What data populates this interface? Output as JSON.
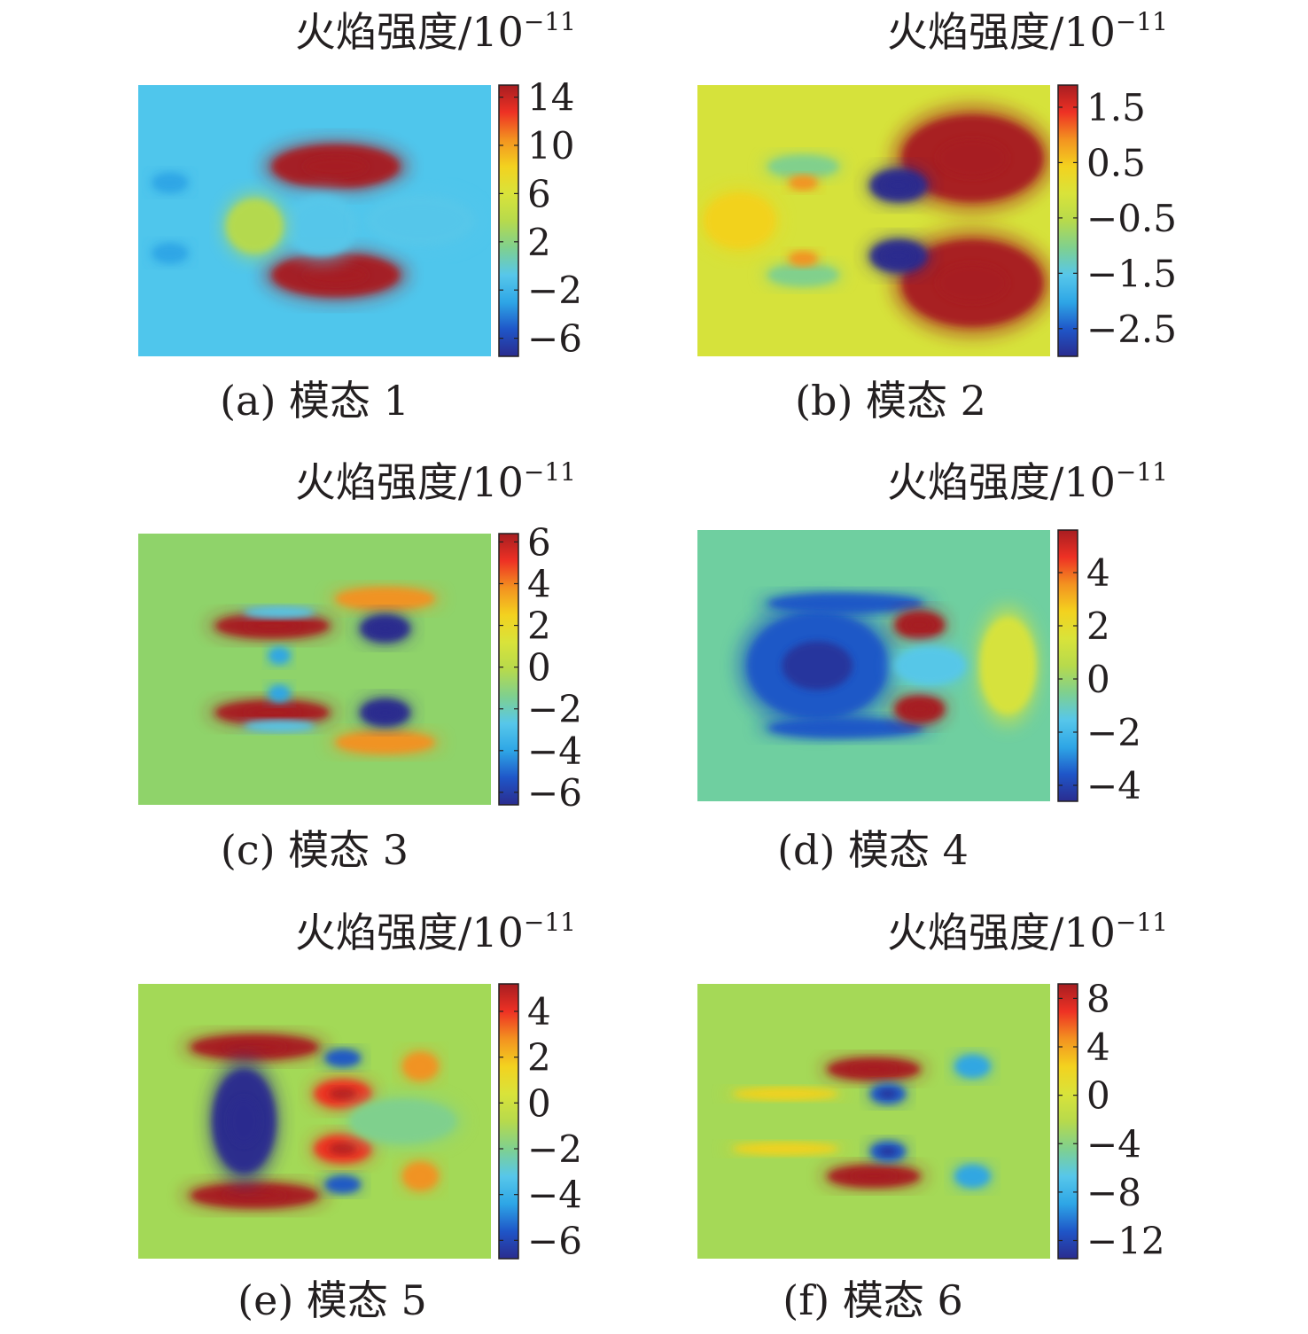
{
  "colors": {
    "jet": [
      "#2a2c8f",
      "#1f56c8",
      "#2ea6e6",
      "#57c7ea",
      "#7fd08f",
      "#b7da4c",
      "#d9e33a",
      "#f3d21f",
      "#f39220",
      "#ee3124",
      "#a71d21"
    ],
    "background_mode1": "#4fc6ec",
    "background_mode2": "#d6e23b",
    "background_mode3": "#8fd36a",
    "background_mode4": "#6fcfa0",
    "background_mode5": "#a3d957",
    "background_mode6": "#a5d957",
    "text": "#231f20"
  },
  "chart_data": [
    {
      "type": "heatmap",
      "caption": "(a) 模态 1",
      "colorbar": {
        "title_base": "火焰强度/10",
        "title_exp": "−11",
        "ticks": [
          "14",
          "10",
          "6",
          "2",
          "−2",
          "−6"
        ],
        "tick_values": [
          14,
          10,
          6,
          2,
          -2,
          -6
        ],
        "range": [
          -7.5,
          15
        ]
      },
      "blobs": [
        {
          "cx": 0.56,
          "cy": 0.3,
          "rx": 0.18,
          "ry": 0.08,
          "value": 14
        },
        {
          "cx": 0.56,
          "cy": 0.7,
          "rx": 0.18,
          "ry": 0.08,
          "value": 14
        },
        {
          "cx": 0.09,
          "cy": 0.36,
          "rx": 0.05,
          "ry": 0.035,
          "value": -4
        },
        {
          "cx": 0.09,
          "cy": 0.62,
          "rx": 0.05,
          "ry": 0.035,
          "value": -4
        },
        {
          "cx": 0.52,
          "cy": 0.52,
          "rx": 0.1,
          "ry": 0.11,
          "value": -1
        },
        {
          "cx": 0.8,
          "cy": 0.5,
          "rx": 0.15,
          "ry": 0.09,
          "value": -0.5
        },
        {
          "cx": 0.33,
          "cy": 0.52,
          "rx": 0.08,
          "ry": 0.1,
          "value": 4
        }
      ],
      "background_value": 1.5
    },
    {
      "type": "heatmap",
      "caption": "(b) 模态 2",
      "colorbar": {
        "title_base": "火焰强度/10",
        "title_exp": "−11",
        "ticks": [
          "1.5",
          "0.5",
          "−0.5",
          "−1.5",
          "−2.5"
        ],
        "tick_values": [
          1.5,
          0.5,
          -0.5,
          -1.5,
          -2.5
        ],
        "range": [
          -3.0,
          1.9
        ]
      },
      "blobs": [
        {
          "cx": 0.78,
          "cy": 0.27,
          "rx": 0.2,
          "ry": 0.16,
          "value": 1.8
        },
        {
          "cx": 0.78,
          "cy": 0.73,
          "rx": 0.2,
          "ry": 0.16,
          "value": 1.8
        },
        {
          "cx": 0.57,
          "cy": 0.37,
          "rx": 0.08,
          "ry": 0.06,
          "value": -2.8
        },
        {
          "cx": 0.57,
          "cy": 0.63,
          "rx": 0.08,
          "ry": 0.06,
          "value": -2.8
        },
        {
          "cx": 0.3,
          "cy": 0.3,
          "rx": 0.1,
          "ry": 0.04,
          "value": -1.2
        },
        {
          "cx": 0.3,
          "cy": 0.7,
          "rx": 0.1,
          "ry": 0.04,
          "value": -1.2
        },
        {
          "cx": 0.3,
          "cy": 0.36,
          "rx": 0.04,
          "ry": 0.025,
          "value": 1.0
        },
        {
          "cx": 0.3,
          "cy": 0.64,
          "rx": 0.04,
          "ry": 0.025,
          "value": 1.0
        },
        {
          "cx": 0.12,
          "cy": 0.5,
          "rx": 0.1,
          "ry": 0.1,
          "value": 0.6
        }
      ],
      "background_value": -0.2
    },
    {
      "type": "heatmap",
      "caption": "(c) 模态 3",
      "colorbar": {
        "title_base": "火焰强度/10",
        "title_exp": "−11",
        "ticks": [
          "6",
          "4",
          "2",
          "0",
          "−2",
          "−4",
          "−6"
        ],
        "tick_values": [
          6,
          4,
          2,
          0,
          -2,
          -4,
          -6
        ],
        "range": [
          -6.6,
          6.4
        ]
      },
      "blobs": [
        {
          "cx": 0.38,
          "cy": 0.34,
          "rx": 0.16,
          "ry": 0.045,
          "value": 6
        },
        {
          "cx": 0.38,
          "cy": 0.66,
          "rx": 0.16,
          "ry": 0.045,
          "value": 6
        },
        {
          "cx": 0.7,
          "cy": 0.24,
          "rx": 0.14,
          "ry": 0.04,
          "value": 3.5
        },
        {
          "cx": 0.7,
          "cy": 0.77,
          "rx": 0.14,
          "ry": 0.04,
          "value": 3.5
        },
        {
          "cx": 0.7,
          "cy": 0.35,
          "rx": 0.07,
          "ry": 0.05,
          "value": -6
        },
        {
          "cx": 0.7,
          "cy": 0.66,
          "rx": 0.07,
          "ry": 0.05,
          "value": -6
        },
        {
          "cx": 0.4,
          "cy": 0.29,
          "rx": 0.1,
          "ry": 0.02,
          "value": -3
        },
        {
          "cx": 0.4,
          "cy": 0.71,
          "rx": 0.1,
          "ry": 0.02,
          "value": -3
        },
        {
          "cx": 0.4,
          "cy": 0.45,
          "rx": 0.03,
          "ry": 0.03,
          "value": -3.5
        },
        {
          "cx": 0.4,
          "cy": 0.59,
          "rx": 0.03,
          "ry": 0.03,
          "value": -3.5
        }
      ],
      "background_value": 0.3
    },
    {
      "type": "heatmap",
      "caption": "(d) 模态 4",
      "colorbar": {
        "title_base": "火焰强度/10",
        "title_exp": "−11",
        "ticks": [
          "4",
          "2",
          "0",
          "−2",
          "−4"
        ],
        "tick_values": [
          4,
          2,
          0,
          -2,
          -4
        ],
        "range": [
          -4.6,
          5.6
        ]
      },
      "blobs": [
        {
          "cx": 0.34,
          "cy": 0.5,
          "rx": 0.2,
          "ry": 0.2,
          "value": -4
        },
        {
          "cx": 0.42,
          "cy": 0.27,
          "rx": 0.22,
          "ry": 0.035,
          "value": -3.5
        },
        {
          "cx": 0.42,
          "cy": 0.73,
          "rx": 0.22,
          "ry": 0.035,
          "value": -3.5
        },
        {
          "cx": 0.63,
          "cy": 0.35,
          "rx": 0.07,
          "ry": 0.05,
          "value": 5.5
        },
        {
          "cx": 0.63,
          "cy": 0.66,
          "rx": 0.07,
          "ry": 0.05,
          "value": 5.5
        },
        {
          "cx": 0.88,
          "cy": 0.5,
          "rx": 0.08,
          "ry": 0.18,
          "value": 1.5
        },
        {
          "cx": 0.66,
          "cy": 0.5,
          "rx": 0.1,
          "ry": 0.07,
          "value": -1.2
        }
      ],
      "background_value": -0.3
    },
    {
      "type": "heatmap",
      "caption": "(e) 模态 5",
      "colorbar": {
        "title_base": "火焰强度/10",
        "title_exp": "−11",
        "ticks": [
          "4",
          "2",
          "0",
          "−2",
          "−4",
          "−6"
        ],
        "tick_values": [
          4,
          2,
          0,
          -2,
          -4,
          -6
        ],
        "range": [
          -6.8,
          5.2
        ]
      },
      "blobs": [
        {
          "cx": 0.33,
          "cy": 0.23,
          "rx": 0.18,
          "ry": 0.045,
          "value": 5
        },
        {
          "cx": 0.33,
          "cy": 0.77,
          "rx": 0.18,
          "ry": 0.045,
          "value": 5
        },
        {
          "cx": 0.3,
          "cy": 0.5,
          "rx": 0.09,
          "ry": 0.19,
          "value": -6.5
        },
        {
          "cx": 0.58,
          "cy": 0.4,
          "rx": 0.08,
          "ry": 0.05,
          "value": 4.5
        },
        {
          "cx": 0.58,
          "cy": 0.6,
          "rx": 0.08,
          "ry": 0.05,
          "value": 4.5
        },
        {
          "cx": 0.58,
          "cy": 0.27,
          "rx": 0.05,
          "ry": 0.03,
          "value": -5.5
        },
        {
          "cx": 0.58,
          "cy": 0.73,
          "rx": 0.05,
          "ry": 0.03,
          "value": -5.5
        },
        {
          "cx": 0.8,
          "cy": 0.3,
          "rx": 0.05,
          "ry": 0.05,
          "value": 3
        },
        {
          "cx": 0.8,
          "cy": 0.7,
          "rx": 0.05,
          "ry": 0.05,
          "value": 3
        },
        {
          "cx": 0.75,
          "cy": 0.5,
          "rx": 0.15,
          "ry": 0.08,
          "value": -1.5
        }
      ],
      "background_value": 0.5
    },
    {
      "type": "heatmap",
      "caption": "(f) 模态 6",
      "colorbar": {
        "title_base": "火焰强度/10",
        "title_exp": "−11",
        "ticks": [
          "8",
          "4",
          "0",
          "−4",
          "−8",
          "−12"
        ],
        "tick_values": [
          8,
          4,
          0,
          -4,
          -8,
          -12
        ],
        "range": [
          -13.5,
          9.2
        ]
      },
      "blobs": [
        {
          "cx": 0.5,
          "cy": 0.31,
          "rx": 0.13,
          "ry": 0.04,
          "value": 9
        },
        {
          "cx": 0.5,
          "cy": 0.7,
          "rx": 0.13,
          "ry": 0.04,
          "value": 9
        },
        {
          "cx": 0.54,
          "cy": 0.4,
          "rx": 0.05,
          "ry": 0.035,
          "value": -12
        },
        {
          "cx": 0.54,
          "cy": 0.61,
          "rx": 0.05,
          "ry": 0.035,
          "value": -12
        },
        {
          "cx": 0.78,
          "cy": 0.3,
          "rx": 0.05,
          "ry": 0.04,
          "value": -8
        },
        {
          "cx": 0.78,
          "cy": 0.7,
          "rx": 0.05,
          "ry": 0.04,
          "value": -8
        },
        {
          "cx": 0.25,
          "cy": 0.4,
          "rx": 0.15,
          "ry": 0.02,
          "value": 2
        },
        {
          "cx": 0.25,
          "cy": 0.6,
          "rx": 0.15,
          "ry": 0.02,
          "value": 2
        }
      ],
      "background_value": 1
    }
  ]
}
